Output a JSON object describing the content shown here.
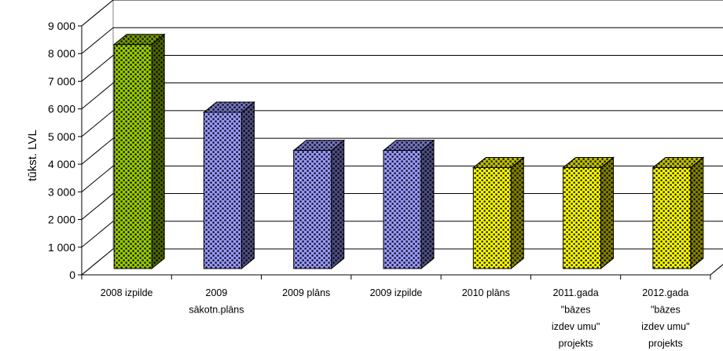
{
  "chart_data": {
    "type": "bar",
    "ylabel": "tūkst. LVL",
    "xlabel": "",
    "ylim": [
      0,
      9000
    ],
    "y_ticks": [
      "0",
      "1 000",
      "2 000",
      "3 000",
      "4 000",
      "5 000",
      "6 000",
      "7 000",
      "8 000",
      "9 000"
    ],
    "grid": true,
    "legend": "none",
    "categories": [
      [
        "2008 izpilde"
      ],
      [
        "2009",
        "sākotn.plāns"
      ],
      [
        "2009 plāns"
      ],
      [
        "2009 izpilde"
      ],
      [
        "2010 plāns"
      ],
      [
        "2011.gada",
        "\"bāzes",
        "izdev umu\"",
        "projekts"
      ],
      [
        "2012.gada",
        "\"bāzes",
        "izdev umu\"",
        "projekts"
      ]
    ],
    "values": [
      8100,
      5650,
      4270,
      4270,
      3650,
      3650,
      3650
    ],
    "bar_colors": [
      "#99cc00",
      "#9999ff",
      "#9999ff",
      "#9999ff",
      "#ffff00",
      "#ffff00",
      "#ffff00"
    ],
    "dot_color": "#000000"
  }
}
